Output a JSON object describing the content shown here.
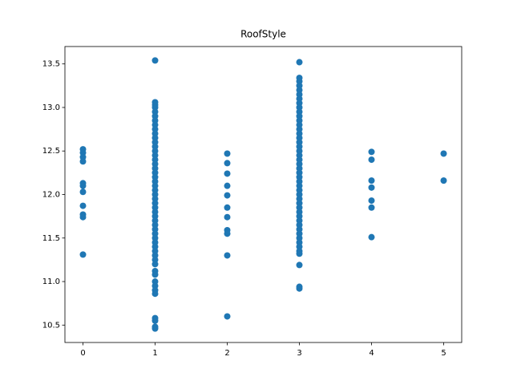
{
  "chart_data": {
    "type": "scatter",
    "title": "RoofStyle",
    "color": "#1f77b4",
    "series": [
      {
        "x": 0,
        "values": [
          12.52,
          12.48,
          12.43,
          12.38,
          12.13,
          12.1,
          12.03,
          11.87,
          11.77,
          11.74,
          11.31
        ]
      },
      {
        "x": 1,
        "values": [
          13.54,
          13.06,
          13.03,
          13.0,
          12.95,
          12.9,
          12.85,
          12.8,
          12.75,
          12.7,
          12.65,
          12.6,
          12.55,
          12.5,
          12.45,
          12.4,
          12.35,
          12.3,
          12.25,
          12.2,
          12.15,
          12.1,
          12.05,
          12.0,
          11.95,
          11.9,
          11.85,
          11.8,
          11.75,
          11.7,
          11.65,
          11.6,
          11.55,
          11.5,
          11.45,
          11.4,
          11.35,
          11.3,
          11.25,
          11.2,
          11.12,
          11.08,
          11.0,
          10.95,
          10.9,
          10.86,
          10.58,
          10.55,
          10.48,
          10.46
        ]
      },
      {
        "x": 2,
        "values": [
          12.47,
          12.36,
          12.24,
          12.1,
          11.99,
          11.85,
          11.74,
          11.59,
          11.55,
          11.3,
          10.6
        ]
      },
      {
        "x": 3,
        "values": [
          13.52,
          13.34,
          13.3,
          13.25,
          13.2,
          13.15,
          13.1,
          13.05,
          13.0,
          12.95,
          12.9,
          12.85,
          12.8,
          12.75,
          12.7,
          12.65,
          12.6,
          12.55,
          12.5,
          12.45,
          12.4,
          12.35,
          12.3,
          12.25,
          12.2,
          12.15,
          12.1,
          12.05,
          12.0,
          11.95,
          11.9,
          11.85,
          11.8,
          11.75,
          11.7,
          11.65,
          11.6,
          11.55,
          11.5,
          11.45,
          11.4,
          11.35,
          11.32,
          11.19,
          10.94,
          10.92
        ]
      },
      {
        "x": 4,
        "values": [
          12.49,
          12.4,
          12.16,
          12.08,
          11.93,
          11.85,
          11.51
        ]
      },
      {
        "x": 5,
        "values": [
          12.47,
          12.16
        ]
      }
    ],
    "xlim": [
      -0.25,
      5.25
    ],
    "xticks": [
      0,
      1,
      2,
      3,
      4,
      5
    ],
    "ylim": [
      10.3,
      13.7
    ],
    "yticks": [
      10.5,
      {
        "value": 11,
        "label": "11.0"
      },
      11.5,
      {
        "value": 12,
        "label": "12.0"
      },
      12.5,
      {
        "value": 13,
        "label": "13.0"
      },
      13.5
    ]
  }
}
